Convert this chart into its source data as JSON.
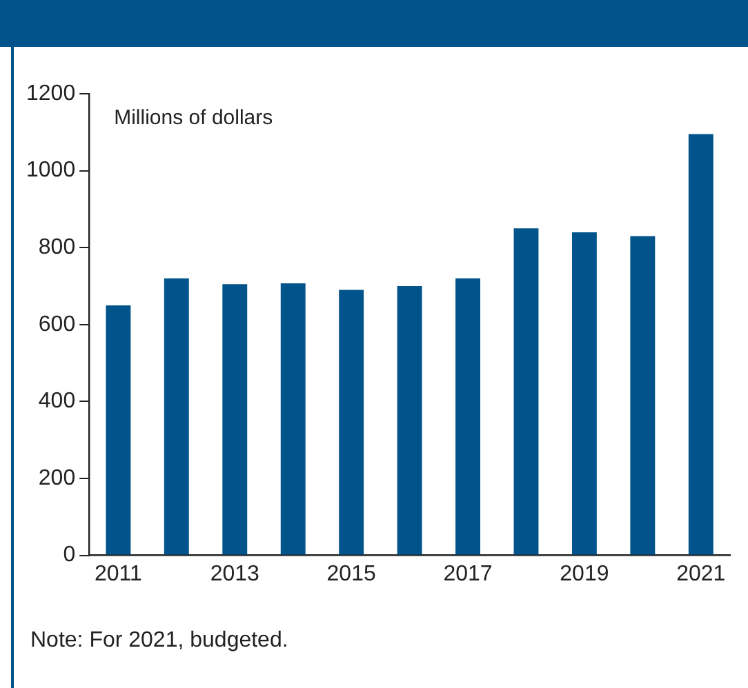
{
  "chart_data": {
    "type": "bar",
    "ylabel": "Millions of dollars",
    "categories": [
      "2011",
      null,
      "2013",
      null,
      "2015",
      null,
      "2017",
      null,
      "2019",
      null,
      "2021"
    ],
    "values": [
      650,
      720,
      705,
      707,
      690,
      700,
      720,
      850,
      840,
      830,
      1095
    ],
    "color": "#00538b",
    "ylim": [
      0,
      1200
    ],
    "yticks": [
      0,
      200,
      400,
      600,
      800,
      1000,
      1200
    ],
    "grid": false,
    "legend": false,
    "annotations": [
      "Note: For 2021, budgeted."
    ]
  }
}
